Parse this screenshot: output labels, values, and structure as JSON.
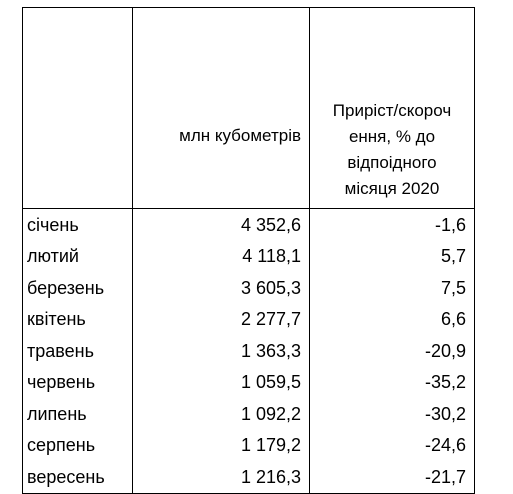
{
  "table": {
    "header": {
      "month": "",
      "volume": "млн кубометрів",
      "change_lines": [
        "Приріст/скороч",
        "ення, % до",
        "відпоідного",
        "місяця 2020"
      ]
    },
    "rows": [
      {
        "month": "січень",
        "volume": "4 352,6",
        "change": "-1,6"
      },
      {
        "month": "лютий",
        "volume": "4 118,1",
        "change": "5,7"
      },
      {
        "month": "березень",
        "volume": "3 605,3",
        "change": "7,5"
      },
      {
        "month": "квітень",
        "volume": "2 277,7",
        "change": "6,6"
      },
      {
        "month": "травень",
        "volume": "1 363,3",
        "change": "-20,9"
      },
      {
        "month": "червень",
        "volume": "1 059,5",
        "change": "-35,2"
      },
      {
        "month": "липень",
        "volume": "1 092,2",
        "change": "-30,2"
      },
      {
        "month": "серпень",
        "volume": "1 179,2",
        "change": "-24,6"
      },
      {
        "month": "вересень",
        "volume": "1 216,3",
        "change": "-21,7"
      }
    ]
  }
}
